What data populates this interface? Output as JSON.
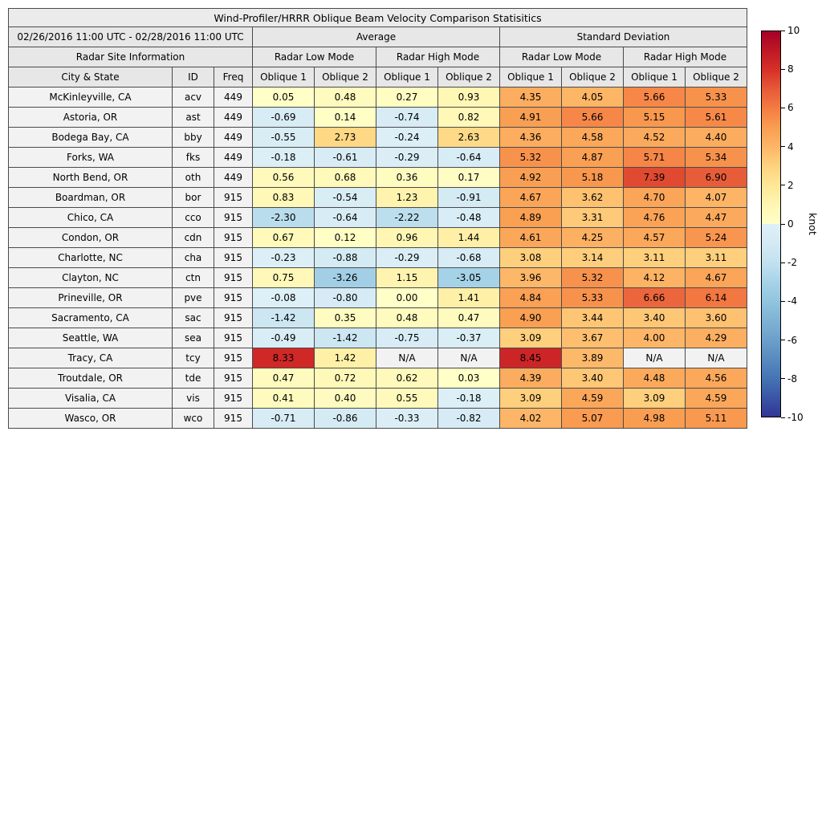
{
  "title": "Wind-Profiler/HRRR Oblique Beam Velocity Comparison Statisitics",
  "table_header": {
    "date_range": "02/26/2016 11:00 UTC - 02/28/2016 11:00 UTC",
    "average": "Average",
    "std": "Standard Deviation",
    "site_info": "Radar Site Information",
    "low_mode": "Radar Low Mode",
    "high_mode": "Radar High Mode",
    "city": "City & State",
    "id": "ID",
    "freq": "Freq",
    "oblique1": "Oblique 1",
    "oblique2": "Oblique 2"
  },
  "colorbar": {
    "label": "knot",
    "min": -10,
    "max": 10,
    "ticks": [
      10,
      8,
      6,
      4,
      2,
      0,
      -2,
      -4,
      -6,
      -8,
      -10
    ],
    "na_color": "#f2f2f2",
    "anchors": [
      {
        "v": -10,
        "c": "#313695"
      },
      {
        "v": -8,
        "c": "#4575b4"
      },
      {
        "v": -6,
        "c": "#6ca0cb"
      },
      {
        "v": -4,
        "c": "#92c5de"
      },
      {
        "v": -3,
        "c": "#a7d3e8"
      },
      {
        "v": -2,
        "c": "#c2e1ef"
      },
      {
        "v": -1,
        "c": "#d4eaf4"
      },
      {
        "v": -0.001,
        "c": "#def0f7"
      },
      {
        "v": 0,
        "c": "#ffffc8"
      },
      {
        "v": 1,
        "c": "#fff6b3"
      },
      {
        "v": 2,
        "c": "#fee797"
      },
      {
        "v": 3,
        "c": "#fed27f"
      },
      {
        "v": 4,
        "c": "#fdb667"
      },
      {
        "v": 5,
        "c": "#f99d51"
      },
      {
        "v": 6,
        "c": "#f47c43"
      },
      {
        "v": 7,
        "c": "#e65a38"
      },
      {
        "v": 8,
        "c": "#d73027"
      },
      {
        "v": 10,
        "c": "#a50026"
      }
    ]
  },
  "chart_data": {
    "type": "heatmap",
    "title": "Wind-Profiler/HRRR Oblique Beam Velocity Comparison Statisitics",
    "unit": "knot",
    "value_range": [
      -10,
      10
    ],
    "columns": [
      "avg_low_oblique1",
      "avg_low_oblique2",
      "avg_high_oblique1",
      "avg_high_oblique2",
      "std_low_oblique1",
      "std_low_oblique2",
      "std_high_oblique1",
      "std_high_oblique2"
    ],
    "rows": [
      {
        "city": "McKinleyville, CA",
        "id": "acv",
        "freq": "449",
        "values": [
          "0.05",
          "0.48",
          "0.27",
          "0.93",
          "4.35",
          "4.05",
          "5.66",
          "5.33"
        ]
      },
      {
        "city": "Astoria, OR",
        "id": "ast",
        "freq": "449",
        "values": [
          "-0.69",
          "0.14",
          "-0.74",
          "0.82",
          "4.91",
          "5.66",
          "5.15",
          "5.61"
        ]
      },
      {
        "city": "Bodega Bay, CA",
        "id": "bby",
        "freq": "449",
        "values": [
          "-0.55",
          "2.73",
          "-0.24",
          "2.63",
          "4.36",
          "4.58",
          "4.52",
          "4.40"
        ]
      },
      {
        "city": "Forks, WA",
        "id": "fks",
        "freq": "449",
        "values": [
          "-0.18",
          "-0.61",
          "-0.29",
          "-0.64",
          "5.32",
          "4.87",
          "5.71",
          "5.34"
        ]
      },
      {
        "city": "North Bend, OR",
        "id": "oth",
        "freq": "449",
        "values": [
          "0.56",
          "0.68",
          "0.36",
          "0.17",
          "4.92",
          "5.18",
          "7.39",
          "6.90"
        ]
      },
      {
        "city": "Boardman, OR",
        "id": "bor",
        "freq": "915",
        "values": [
          "0.83",
          "-0.54",
          "1.23",
          "-0.91",
          "4.67",
          "3.62",
          "4.70",
          "4.07"
        ]
      },
      {
        "city": "Chico, CA",
        "id": "cco",
        "freq": "915",
        "values": [
          "-2.30",
          "-0.64",
          "-2.22",
          "-0.48",
          "4.89",
          "3.31",
          "4.76",
          "4.47"
        ]
      },
      {
        "city": "Condon, OR",
        "id": "cdn",
        "freq": "915",
        "values": [
          "0.67",
          "0.12",
          "0.96",
          "1.44",
          "4.61",
          "4.25",
          "4.57",
          "5.24"
        ]
      },
      {
        "city": "Charlotte, NC",
        "id": "cha",
        "freq": "915",
        "values": [
          "-0.23",
          "-0.88",
          "-0.29",
          "-0.68",
          "3.08",
          "3.14",
          "3.11",
          "3.11"
        ]
      },
      {
        "city": "Clayton, NC",
        "id": "ctn",
        "freq": "915",
        "values": [
          "0.75",
          "-3.26",
          "1.15",
          "-3.05",
          "3.96",
          "5.32",
          "4.12",
          "4.67"
        ]
      },
      {
        "city": "Prineville, OR",
        "id": "pve",
        "freq": "915",
        "values": [
          "-0.08",
          "-0.80",
          "0.00",
          "1.41",
          "4.84",
          "5.33",
          "6.66",
          "6.14"
        ]
      },
      {
        "city": "Sacramento, CA",
        "id": "sac",
        "freq": "915",
        "values": [
          "-1.42",
          "0.35",
          "0.48",
          "0.47",
          "4.90",
          "3.44",
          "3.40",
          "3.60"
        ]
      },
      {
        "city": "Seattle, WA",
        "id": "sea",
        "freq": "915",
        "values": [
          "-0.49",
          "-1.42",
          "-0.75",
          "-0.37",
          "3.09",
          "3.67",
          "4.00",
          "4.29"
        ]
      },
      {
        "city": "Tracy, CA",
        "id": "tcy",
        "freq": "915",
        "values": [
          "8.33",
          "1.42",
          "N/A",
          "N/A",
          "8.45",
          "3.89",
          "N/A",
          "N/A"
        ]
      },
      {
        "city": "Troutdale, OR",
        "id": "tde",
        "freq": "915",
        "values": [
          "0.47",
          "0.72",
          "0.62",
          "0.03",
          "4.39",
          "3.40",
          "4.48",
          "4.56"
        ]
      },
      {
        "city": "Visalia, CA",
        "id": "vis",
        "freq": "915",
        "values": [
          "0.41",
          "0.40",
          "0.55",
          "-0.18",
          "3.09",
          "4.59",
          "3.09",
          "4.59"
        ]
      },
      {
        "city": "Wasco, OR",
        "id": "wco",
        "freq": "915",
        "values": [
          "-0.71",
          "-0.86",
          "-0.33",
          "-0.82",
          "4.02",
          "5.07",
          "4.98",
          "5.11"
        ]
      }
    ]
  }
}
